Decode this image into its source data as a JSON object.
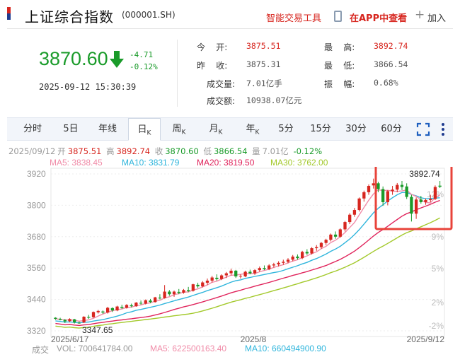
{
  "header": {
    "title": "上证综合指数",
    "code": "(000001.SH)",
    "tools_label": "智能交易工具",
    "app_label": "在APP中查看",
    "add_label": "加入"
  },
  "quote": {
    "price": "3870.60",
    "change": "-4.71",
    "change_pct": "-0.12%",
    "datetime": "2025-09-12 15:30:39"
  },
  "stats": {
    "open_label": "今    开:",
    "open": "3875.51",
    "prev_label": "昨    收:",
    "prev": "3875.31",
    "vol_label": "成交量:",
    "vol": "7.01亿手",
    "amt_label": "成交额:",
    "amt": "10938.07亿元",
    "high_label": "最    高:",
    "high": "3892.74",
    "low_label": "最    低:",
    "low": "3866.54",
    "amp_label": "振    幅:",
    "amp": "0.68%"
  },
  "tabs": [
    {
      "label": "分时"
    },
    {
      "label": "5日"
    },
    {
      "label": "年线"
    },
    {
      "label": "日",
      "sub": "K"
    },
    {
      "label": "周",
      "sub": "K"
    },
    {
      "label": "月",
      "sub": "K"
    },
    {
      "label": "年",
      "sub": "K"
    },
    {
      "label": "5分"
    },
    {
      "label": "15分"
    },
    {
      "label": "30分"
    },
    {
      "label": "60分"
    }
  ],
  "ohlc": {
    "date": "2025/09/12",
    "open_label": "开",
    "open": "3875.51",
    "high_label": "高",
    "high": "3892.74",
    "close_label": "收",
    "close": "3870.60",
    "low_label": "低",
    "low": "3866.54",
    "vol_label": "量",
    "vol": "7.01亿",
    "pct": "-0.12%"
  },
  "ma": {
    "ma5": "MA5: 3838.45",
    "ma10": "MA10: 3831.79",
    "ma20": "MA20: 3819.50",
    "ma30": "MA30: 3762.00"
  },
  "volume_bar": {
    "label": "成交",
    "vol": "VOL: 700641784.00",
    "ma5": "MA5: 622500163.40",
    "ma10": "MA10: 660494900.90"
  },
  "colors": {
    "up": "#d7261f",
    "down": "#1a9b2a",
    "ma5": "#f08ca8",
    "ma10": "#2fb5dc",
    "ma20": "#e0245c",
    "ma30": "#a3c92b",
    "highlight": "#e8433a"
  },
  "chart_data": {
    "type": "candlestick",
    "y_ticks": [
      "3920",
      "3800",
      "3680",
      "3560",
      "3440",
      "3320"
    ],
    "y_range": [
      3320,
      3920
    ],
    "pct_ticks": [
      "12%",
      "9%",
      "5%",
      "2%",
      "-2%"
    ],
    "x_labels": [
      "2025/6/17",
      "2025/8",
      "2025/9/12"
    ],
    "high_annotation": "3892.74",
    "low_annotation": "3347.65",
    "candles": [
      [
        3370,
        3372,
        3362,
        3366
      ],
      [
        3366,
        3370,
        3360,
        3362
      ],
      [
        3362,
        3365,
        3350,
        3356
      ],
      [
        3357,
        3368,
        3353,
        3365
      ],
      [
        3364,
        3366,
        3348,
        3352
      ],
      [
        3351,
        3356,
        3347,
        3350
      ],
      [
        3352,
        3376,
        3350,
        3374
      ],
      [
        3373,
        3381,
        3366,
        3370
      ],
      [
        3372,
        3394,
        3370,
        3392
      ],
      [
        3391,
        3400,
        3386,
        3396
      ],
      [
        3394,
        3398,
        3385,
        3390
      ],
      [
        3390,
        3412,
        3386,
        3408
      ],
      [
        3407,
        3410,
        3392,
        3398
      ],
      [
        3398,
        3416,
        3395,
        3413
      ],
      [
        3412,
        3420,
        3404,
        3408
      ],
      [
        3408,
        3422,
        3405,
        3419
      ],
      [
        3418,
        3424,
        3410,
        3414
      ],
      [
        3414,
        3430,
        3412,
        3428
      ],
      [
        3427,
        3436,
        3420,
        3425
      ],
      [
        3424,
        3440,
        3421,
        3437
      ],
      [
        3436,
        3442,
        3426,
        3430
      ],
      [
        3430,
        3450,
        3428,
        3448
      ],
      [
        3447,
        3460,
        3440,
        3444
      ],
      [
        3445,
        3495,
        3443,
        3470
      ],
      [
        3470,
        3476,
        3454,
        3460
      ],
      [
        3460,
        3474,
        3450,
        3470
      ],
      [
        3469,
        3480,
        3460,
        3465
      ],
      [
        3466,
        3480,
        3462,
        3476
      ],
      [
        3476,
        3488,
        3468,
        3472
      ],
      [
        3473,
        3500,
        3470,
        3498
      ],
      [
        3496,
        3504,
        3484,
        3490
      ],
      [
        3490,
        3510,
        3486,
        3505
      ],
      [
        3504,
        3520,
        3496,
        3512
      ],
      [
        3512,
        3530,
        3505,
        3524
      ],
      [
        3523,
        3536,
        3512,
        3518
      ],
      [
        3518,
        3536,
        3514,
        3532
      ],
      [
        3532,
        3545,
        3522,
        3540
      ],
      [
        3540,
        3558,
        3532,
        3550
      ],
      [
        3550,
        3553,
        3522,
        3528
      ],
      [
        3528,
        3536,
        3520,
        3530
      ],
      [
        3528,
        3550,
        3525,
        3546
      ],
      [
        3546,
        3554,
        3536,
        3540
      ],
      [
        3540,
        3556,
        3534,
        3552
      ],
      [
        3552,
        3566,
        3546,
        3560
      ],
      [
        3560,
        3570,
        3552,
        3556
      ],
      [
        3556,
        3575,
        3552,
        3570
      ],
      [
        3570,
        3580,
        3562,
        3574
      ],
      [
        3574,
        3586,
        3566,
        3580
      ],
      [
        3580,
        3592,
        3572,
        3584
      ],
      [
        3584,
        3598,
        3578,
        3592
      ],
      [
        3592,
        3610,
        3586,
        3604
      ],
      [
        3604,
        3612,
        3592,
        3598
      ],
      [
        3598,
        3626,
        3594,
        3622
      ],
      [
        3622,
        3632,
        3610,
        3616
      ],
      [
        3616,
        3640,
        3612,
        3636
      ],
      [
        3636,
        3648,
        3626,
        3640
      ],
      [
        3640,
        3660,
        3634,
        3656
      ],
      [
        3656,
        3672,
        3648,
        3668
      ],
      [
        3668,
        3692,
        3662,
        3688
      ],
      [
        3688,
        3700,
        3672,
        3680
      ],
      [
        3680,
        3712,
        3676,
        3708
      ],
      [
        3708,
        3740,
        3700,
        3736
      ],
      [
        3736,
        3770,
        3728,
        3764
      ],
      [
        3764,
        3790,
        3756,
        3782
      ],
      [
        3782,
        3830,
        3776,
        3826
      ],
      [
        3826,
        3856,
        3814,
        3850
      ],
      [
        3850,
        3880,
        3840,
        3874
      ],
      [
        3876,
        3902,
        3864,
        3884
      ],
      [
        3884,
        3890,
        3850,
        3862
      ],
      [
        3862,
        3872,
        3798,
        3812
      ],
      [
        3812,
        3858,
        3800,
        3854
      ],
      [
        3854,
        3874,
        3840,
        3860
      ],
      [
        3860,
        3885,
        3850,
        3878
      ],
      [
        3878,
        3893,
        3858,
        3870
      ],
      [
        3872,
        3884,
        3824,
        3832
      ],
      [
        3832,
        3840,
        3738,
        3768
      ],
      [
        3768,
        3830,
        3748,
        3822
      ],
      [
        3822,
        3836,
        3806,
        3812
      ],
      [
        3812,
        3826,
        3802,
        3820
      ],
      [
        3820,
        3840,
        3812,
        3824
      ],
      [
        3824,
        3876,
        3820,
        3870
      ],
      [
        3875,
        3893,
        3866,
        3871
      ]
    ]
  }
}
